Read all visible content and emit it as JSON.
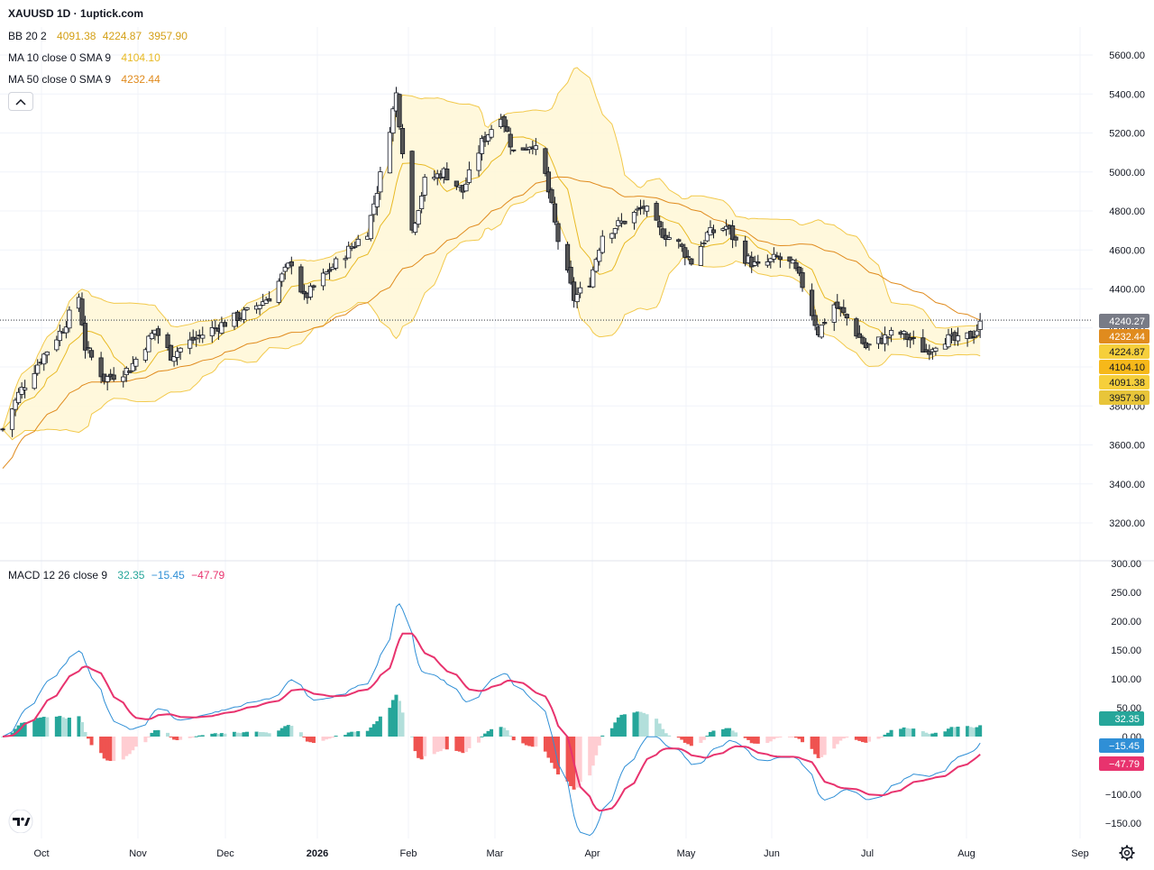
{
  "header": {
    "title": "XAUUSD 1D · 1uptick.com"
  },
  "legend": {
    "bb": {
      "name": "BB 20 2",
      "values": [
        "4091.38",
        "4224.87",
        "3957.90"
      ]
    },
    "ma10": {
      "name": "MA 10 close 0 SMA 9",
      "value": "4104.10"
    },
    "ma50": {
      "name": "MA 50 close 0 SMA 9",
      "value": "4232.44"
    },
    "macd": {
      "name": "MACD 12 26 close 9",
      "values": [
        "32.35",
        "−15.45",
        "−47.79"
      ]
    }
  },
  "colors": {
    "up_candle": "#ffffff",
    "down_candle": "#555555",
    "bb_band": "#f2c94c",
    "bb_fill": "#fff7d6",
    "ma10": "#e8b923",
    "ma50": "#e08b1e",
    "macd_line": "#2f8fd6",
    "signal_line": "#e8336e",
    "hist_up_strong": "#26a69a",
    "hist_up_weak": "#b2dfdb",
    "hist_down_strong": "#ef5350",
    "hist_down_weak": "#ffcdd2"
  },
  "icons": {
    "collapse": "chevron-up-icon",
    "logo": "tradingview-logo",
    "settings": "gear-icon"
  },
  "chart_data": [
    {
      "type": "candlestick",
      "title": "XAUUSD 1D · 1uptick.com",
      "x_labels": [
        "Oct",
        "Nov",
        "Dec",
        "2026",
        "Feb",
        "Mar",
        "Apr",
        "May",
        "Jun",
        "Jul",
        "Aug",
        "Sep"
      ],
      "y_ticks": [
        "3200.00",
        "3400.00",
        "3600.00",
        "3800.00",
        "4000.00",
        "4200.00",
        "4400.00",
        "4600.00",
        "4800.00",
        "5000.00",
        "5200.00",
        "5400.00",
        "5600.00"
      ],
      "ylim": [
        3080,
        5680
      ],
      "anchors": [
        {
          "date": "2025-09-26",
          "close": 3680
        },
        {
          "date": "2025-10-01",
          "close": 3860
        },
        {
          "date": "2025-10-08",
          "close": 4040
        },
        {
          "date": "2025-10-15",
          "close": 4200
        },
        {
          "date": "2025-10-20",
          "close": 4360
        },
        {
          "date": "2025-10-22",
          "close": 4100
        },
        {
          "date": "2025-10-28",
          "close": 3940
        },
        {
          "date": "2025-11-05",
          "close": 3990
        },
        {
          "date": "2025-11-13",
          "close": 4190
        },
        {
          "date": "2025-11-18",
          "close": 4060
        },
        {
          "date": "2025-11-25",
          "close": 4140
        },
        {
          "date": "2025-12-03",
          "close": 4210
        },
        {
          "date": "2025-12-12",
          "close": 4280
        },
        {
          "date": "2025-12-19",
          "close": 4360
        },
        {
          "date": "2025-12-26",
          "close": 4540
        },
        {
          "date": "2025-12-30",
          "close": 4350
        },
        {
          "date": "2026-01-06",
          "close": 4480
        },
        {
          "date": "2026-01-13",
          "close": 4600
        },
        {
          "date": "2026-01-19",
          "close": 4700
        },
        {
          "date": "2026-01-23",
          "close": 4980
        },
        {
          "date": "2026-01-28",
          "close": 5400
        },
        {
          "date": "2026-02-02",
          "close": 4700
        },
        {
          "date": "2026-02-06",
          "close": 4950
        },
        {
          "date": "2026-02-12",
          "close": 5000
        },
        {
          "date": "2026-02-18",
          "close": 4900
        },
        {
          "date": "2026-02-24",
          "close": 5150
        },
        {
          "date": "2026-03-02",
          "close": 5300
        },
        {
          "date": "2026-03-06",
          "close": 5100
        },
        {
          "date": "2026-03-12",
          "close": 5150
        },
        {
          "date": "2026-03-16",
          "close": 4980
        },
        {
          "date": "2026-03-20",
          "close": 4650
        },
        {
          "date": "2026-03-25",
          "close": 4350
        },
        {
          "date": "2026-03-30",
          "close": 4440
        },
        {
          "date": "2026-04-03",
          "close": 4680
        },
        {
          "date": "2026-04-10",
          "close": 4750
        },
        {
          "date": "2026-04-16",
          "close": 4820
        },
        {
          "date": "2026-04-21",
          "close": 4700
        },
        {
          "date": "2026-04-27",
          "close": 4630
        },
        {
          "date": "2026-05-01",
          "close": 4540
        },
        {
          "date": "2026-05-06",
          "close": 4680
        },
        {
          "date": "2026-05-12",
          "close": 4720
        },
        {
          "date": "2026-05-18",
          "close": 4560
        },
        {
          "date": "2026-05-22",
          "close": 4510
        },
        {
          "date": "2026-05-28",
          "close": 4560
        },
        {
          "date": "2026-06-02",
          "close": 4520
        },
        {
          "date": "2026-06-05",
          "close": 4420
        },
        {
          "date": "2026-06-10",
          "close": 4180
        },
        {
          "date": "2026-06-15",
          "close": 4320
        },
        {
          "date": "2026-06-19",
          "close": 4250
        },
        {
          "date": "2026-06-25",
          "close": 4100
        },
        {
          "date": "2026-07-01",
          "close": 4150
        },
        {
          "date": "2026-07-05",
          "close": 4180
        },
        {
          "date": "2026-07-09",
          "close": 4140
        },
        {
          "date": "2026-07-14",
          "close": 4080
        },
        {
          "date": "2026-07-19",
          "close": 4150
        },
        {
          "date": "2026-07-24",
          "close": 4130
        },
        {
          "date": "2026-07-29",
          "close": 4170
        },
        {
          "date": "2026-08-01",
          "close": 4240
        }
      ],
      "last_price": "4240.27",
      "last_price_label": [
        "4240.27",
        "4232.44",
        "4224.87",
        "4104.10",
        "4091.38",
        "3957.90"
      ]
    },
    {
      "type": "macd",
      "title": "MACD 12 26 close 9",
      "y_ticks": [
        "300.00",
        "250.00",
        "200.00",
        "150.00",
        "100.00",
        "50.00",
        "0.00",
        "−100.00",
        "−150.00"
      ],
      "ylim": [
        -160,
        300
      ],
      "last_values": [
        "32.35",
        "−15.45",
        "−47.79"
      ]
    }
  ]
}
